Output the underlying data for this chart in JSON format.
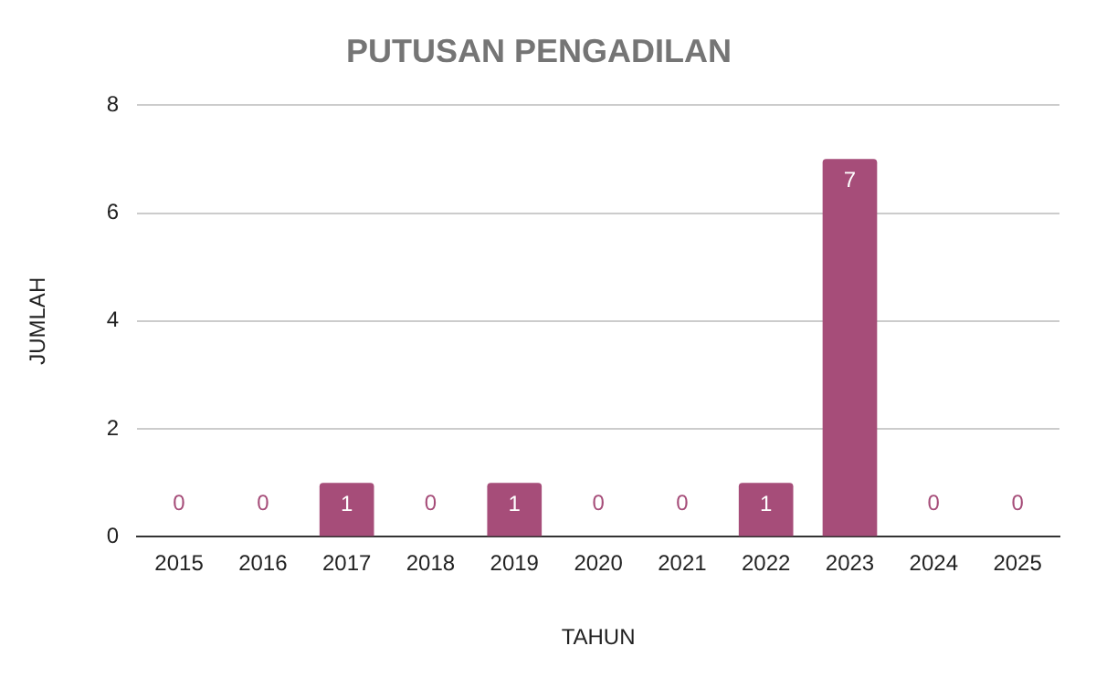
{
  "chart_data": {
    "type": "bar",
    "title": "PUTUSAN PENGADILAN",
    "xlabel": "TAHUN",
    "ylabel": "JUMLAH",
    "categories": [
      "2015",
      "2016",
      "2017",
      "2018",
      "2019",
      "2020",
      "2021",
      "2022",
      "2023",
      "2024",
      "2025"
    ],
    "values": [
      0,
      0,
      1,
      0,
      1,
      0,
      0,
      1,
      7,
      0,
      0
    ],
    "color": "#a64d79",
    "ylim": [
      0,
      8
    ],
    "yticks": [
      0,
      2,
      4,
      6,
      8
    ],
    "grid": "y",
    "data_labels": true,
    "legend": false
  }
}
